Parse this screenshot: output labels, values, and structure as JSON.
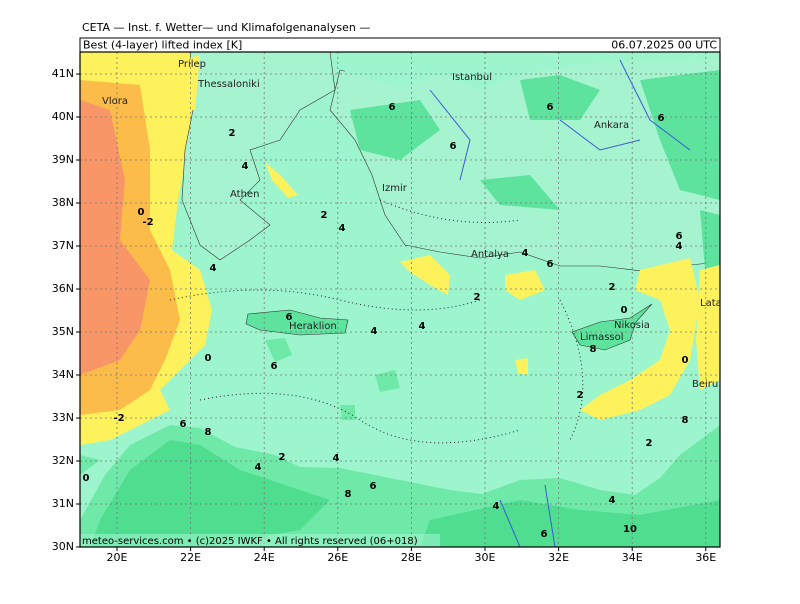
{
  "header": {
    "institute": "CETA — Inst. f. Wetter— und Klimafolgenanalysen —",
    "title": "Best (4-layer) lifted index [K]",
    "valid_time": "06.07.2025 00 UTC"
  },
  "map": {
    "lat_ticks": [
      {
        "value": 41,
        "label": "41N"
      },
      {
        "value": 40,
        "label": "40N"
      },
      {
        "value": 39,
        "label": "39N"
      },
      {
        "value": 38,
        "label": "38N"
      },
      {
        "value": 37,
        "label": "37N"
      },
      {
        "value": 36,
        "label": "36N"
      },
      {
        "value": 35,
        "label": "35N"
      },
      {
        "value": 34,
        "label": "34N"
      },
      {
        "value": 33,
        "label": "33N"
      },
      {
        "value": 32,
        "label": "32N"
      },
      {
        "value": 31,
        "label": "31N"
      },
      {
        "value": 30,
        "label": "30N"
      }
    ],
    "lon_ticks": [
      {
        "value": 20,
        "label": "20E"
      },
      {
        "value": 22,
        "label": "22E"
      },
      {
        "value": 24,
        "label": "24E"
      },
      {
        "value": 26,
        "label": "26E"
      },
      {
        "value": 28,
        "label": "28E"
      },
      {
        "value": 30,
        "label": "30E"
      },
      {
        "value": 32,
        "label": "32E"
      },
      {
        "value": 34,
        "label": "34E"
      },
      {
        "value": 36,
        "label": "36E"
      }
    ],
    "cities": [
      "Prilep",
      "Thessaloniki",
      "Vlora",
      "Athen",
      "Izmir",
      "Istanbul",
      "Ankara",
      "Antalya",
      "Heraklion",
      "Nikosia",
      "Limassol",
      "Latakia",
      "Beiru"
    ],
    "contour_labels": [
      6,
      6,
      6,
      6,
      2,
      4,
      2,
      4,
      -2,
      0,
      4,
      4,
      6,
      2,
      2,
      0,
      6,
      4,
      6,
      4,
      4,
      0,
      6,
      8,
      0,
      2,
      -2,
      6,
      8,
      2,
      4,
      4,
      6,
      8,
      0,
      2,
      8,
      4,
      4,
      6,
      10
    ]
  },
  "footer": "meteo-services.com • (c)2025 IWKF • All rights reserved (06+018)"
}
